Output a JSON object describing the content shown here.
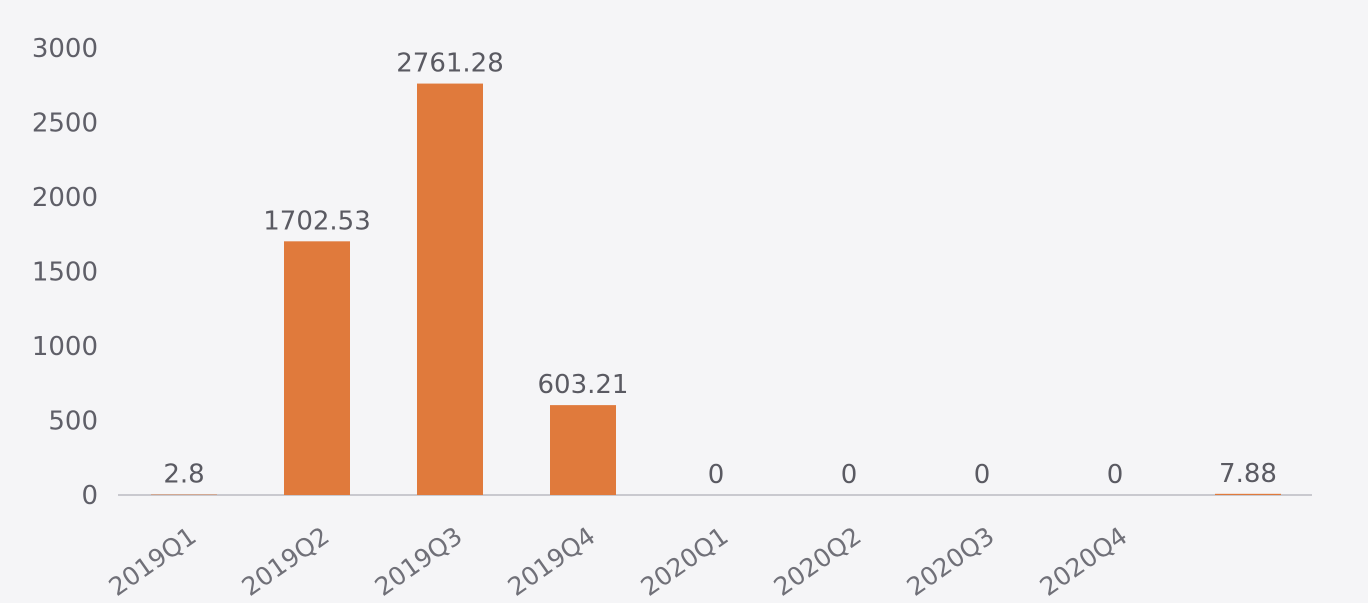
{
  "chart_data": {
    "type": "bar",
    "categories": [
      "2019Q1",
      "2019Q2",
      "2019Q3",
      "2019Q4",
      "2020Q1",
      "2020Q2",
      "2020Q3",
      "2020Q4",
      ""
    ],
    "values": [
      2.8,
      1702.53,
      2761.28,
      603.21,
      0,
      0,
      0,
      0,
      7.88
    ],
    "data_labels": [
      "2.8",
      "1702.53",
      "2761.28",
      "603.21",
      "0",
      "0",
      "0",
      "0",
      "7.88"
    ],
    "y_ticks": [
      0,
      500,
      1000,
      1500,
      2000,
      2500,
      3000
    ],
    "ylim": [
      0,
      3000
    ],
    "title": "",
    "xlabel": "",
    "ylabel": "",
    "grid": false,
    "legend": "none",
    "bar_color": "#e07a3c",
    "axis_color": "#c9c9cf"
  }
}
